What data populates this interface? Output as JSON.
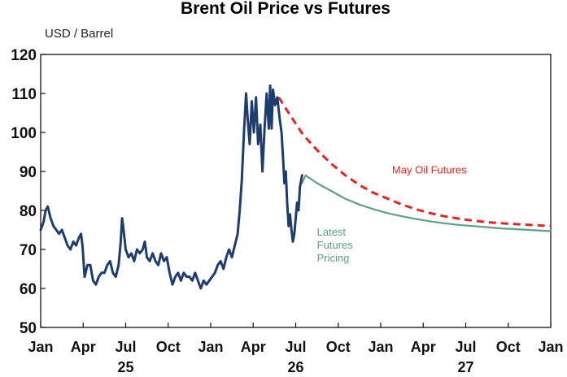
{
  "chart_data": {
    "type": "line",
    "title": "Brent Oil Price vs Futures",
    "ylabel": "USD / Barrel",
    "ylim": [
      50,
      120
    ],
    "yticks": [
      50,
      60,
      70,
      80,
      90,
      100,
      110,
      120
    ],
    "xlim": [
      0,
      36
    ],
    "grid": false,
    "x_ticks": [
      {
        "month": 0,
        "label": "Jan"
      },
      {
        "month": 3,
        "label": "Apr"
      },
      {
        "month": 6,
        "label": "Jul"
      },
      {
        "month": 9,
        "label": "Oct"
      },
      {
        "month": 12,
        "label": "Jan"
      },
      {
        "month": 15,
        "label": "Apr"
      },
      {
        "month": 18,
        "label": "Jul"
      },
      {
        "month": 21,
        "label": "Oct"
      },
      {
        "month": 24,
        "label": "Jan"
      },
      {
        "month": 27,
        "label": "Apr"
      },
      {
        "month": 30,
        "label": "Jul"
      },
      {
        "month": 33,
        "label": "Oct"
      },
      {
        "month": 36,
        "label": "Jan"
      }
    ],
    "year_labels": [
      {
        "month": 6,
        "label": "25"
      },
      {
        "month": 18,
        "label": "26"
      },
      {
        "month": 30,
        "label": "27"
      }
    ],
    "series": [
      {
        "name": "",
        "color": "#1f3c6e",
        "style": "solid",
        "points": [
          [
            0.0,
            75
          ],
          [
            0.2,
            77
          ],
          [
            0.35,
            80
          ],
          [
            0.5,
            81
          ],
          [
            0.7,
            78
          ],
          [
            0.9,
            76
          ],
          [
            1.1,
            75
          ],
          [
            1.3,
            74
          ],
          [
            1.5,
            75
          ],
          [
            1.7,
            73
          ],
          [
            1.9,
            71
          ],
          [
            2.1,
            70
          ],
          [
            2.3,
            72
          ],
          [
            2.5,
            71
          ],
          [
            2.7,
            73
          ],
          [
            2.85,
            74
          ],
          [
            2.95,
            71
          ],
          [
            3.1,
            63
          ],
          [
            3.3,
            66
          ],
          [
            3.5,
            66
          ],
          [
            3.7,
            62
          ],
          [
            3.9,
            61
          ],
          [
            4.1,
            63
          ],
          [
            4.3,
            64
          ],
          [
            4.5,
            64
          ],
          [
            4.7,
            66
          ],
          [
            4.9,
            67
          ],
          [
            5.1,
            64
          ],
          [
            5.3,
            63
          ],
          [
            5.5,
            66
          ],
          [
            5.65,
            72
          ],
          [
            5.75,
            78
          ],
          [
            5.85,
            75
          ],
          [
            6.0,
            70
          ],
          [
            6.2,
            68
          ],
          [
            6.4,
            69
          ],
          [
            6.6,
            67
          ],
          [
            6.8,
            70
          ],
          [
            7.0,
            69
          ],
          [
            7.2,
            70
          ],
          [
            7.35,
            72
          ],
          [
            7.5,
            68
          ],
          [
            7.7,
            67
          ],
          [
            7.9,
            69
          ],
          [
            8.1,
            67
          ],
          [
            8.3,
            66
          ],
          [
            8.5,
            69
          ],
          [
            8.7,
            67
          ],
          [
            8.9,
            68
          ],
          [
            9.1,
            64
          ],
          [
            9.3,
            61
          ],
          [
            9.5,
            63
          ],
          [
            9.7,
            64
          ],
          [
            9.9,
            62
          ],
          [
            10.1,
            64
          ],
          [
            10.3,
            63
          ],
          [
            10.5,
            63
          ],
          [
            10.7,
            62
          ],
          [
            10.9,
            64
          ],
          [
            11.1,
            62
          ],
          [
            11.3,
            60
          ],
          [
            11.5,
            62
          ],
          [
            11.7,
            61
          ],
          [
            11.9,
            62
          ],
          [
            12.1,
            63
          ],
          [
            12.3,
            64
          ],
          [
            12.5,
            66
          ],
          [
            12.7,
            67
          ],
          [
            12.9,
            65
          ],
          [
            13.1,
            68
          ],
          [
            13.3,
            70
          ],
          [
            13.5,
            68
          ],
          [
            13.7,
            71
          ],
          [
            13.9,
            74
          ],
          [
            14.05,
            80
          ],
          [
            14.2,
            88
          ],
          [
            14.35,
            100
          ],
          [
            14.5,
            110
          ],
          [
            14.6,
            104
          ],
          [
            14.75,
            97
          ],
          [
            14.9,
            108
          ],
          [
            15.05,
            100
          ],
          [
            15.2,
            109
          ],
          [
            15.35,
            97
          ],
          [
            15.5,
            102
          ],
          [
            15.65,
            90
          ],
          [
            15.8,
            101
          ],
          [
            15.95,
            110
          ],
          [
            16.1,
            101
          ],
          [
            16.2,
            112
          ],
          [
            16.3,
            101
          ],
          [
            16.4,
            111
          ],
          [
            16.55,
            107
          ],
          [
            16.7,
            109
          ],
          [
            16.85,
            104
          ],
          [
            17.0,
            100
          ],
          [
            17.1,
            94
          ],
          [
            17.2,
            87
          ],
          [
            17.3,
            90
          ],
          [
            17.4,
            82
          ],
          [
            17.5,
            76
          ],
          [
            17.6,
            79
          ],
          [
            17.7,
            75
          ],
          [
            17.8,
            72
          ],
          [
            17.9,
            74
          ],
          [
            18.0,
            78
          ],
          [
            18.1,
            82
          ],
          [
            18.2,
            80
          ],
          [
            18.3,
            86
          ],
          [
            18.45,
            89
          ]
        ]
      },
      {
        "name": "May Oil Futures",
        "color": "#e0261f",
        "style": "dashed",
        "points": [
          [
            16.8,
            109
          ],
          [
            17.5,
            105
          ],
          [
            18.5,
            99.5
          ],
          [
            19.5,
            95.5
          ],
          [
            20.5,
            92
          ],
          [
            21.5,
            89
          ],
          [
            22.5,
            86.5
          ],
          [
            23.5,
            84.5
          ],
          [
            24.5,
            83
          ],
          [
            25.5,
            81.5
          ],
          [
            26.5,
            80.3
          ],
          [
            27.5,
            79.3
          ],
          [
            28.5,
            78.5
          ],
          [
            29.5,
            77.9
          ],
          [
            30.5,
            77.4
          ],
          [
            31.5,
            77
          ],
          [
            32.5,
            76.7
          ],
          [
            33.5,
            76.5
          ],
          [
            34.5,
            76.3
          ],
          [
            35.5,
            76.1
          ],
          [
            36.0,
            76
          ]
        ]
      },
      {
        "name": "Latest Futures Pricing",
        "color": "#5aa283",
        "style": "solid",
        "points": [
          [
            18.45,
            87
          ],
          [
            18.7,
            89
          ],
          [
            19.5,
            87
          ],
          [
            20.5,
            85
          ],
          [
            21.5,
            83
          ],
          [
            22.5,
            81.5
          ],
          [
            23.5,
            80.3
          ],
          [
            24.5,
            79.3
          ],
          [
            25.5,
            78.5
          ],
          [
            26.5,
            77.8
          ],
          [
            27.5,
            77.2
          ],
          [
            28.5,
            76.7
          ],
          [
            29.5,
            76.3
          ],
          [
            30.5,
            76
          ],
          [
            31.5,
            75.7
          ],
          [
            32.5,
            75.4
          ],
          [
            33.5,
            75.2
          ],
          [
            34.5,
            75
          ],
          [
            35.5,
            74.8
          ],
          [
            36.0,
            74.7
          ]
        ]
      }
    ],
    "annotations": [
      {
        "text": "May Oil Futures",
        "series": 1,
        "x": 24.8,
        "y": 89.5
      },
      {
        "text": "Latest",
        "series": 2,
        "x": 19.5,
        "y": 73.5
      },
      {
        "text": "Futures",
        "series": 2,
        "x": 19.5,
        "y": 70.2
      },
      {
        "text": "Pricing",
        "series": 2,
        "x": 19.5,
        "y": 66.9
      }
    ]
  }
}
